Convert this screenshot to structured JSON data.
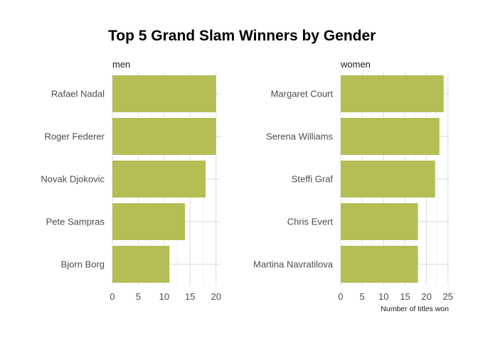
{
  "chart_data": {
    "type": "bar",
    "orientation": "horizontal",
    "title": "Top 5 Grand Slam Winners by Gender",
    "xlabel": "Number of titles won",
    "bar_color": "#b5bd55",
    "grid": true,
    "panels": [
      {
        "label": "men",
        "categories": [
          "Rafael Nadal",
          "Roger Federer",
          "Novak Djokovic",
          "Pete Sampras",
          "Bjorn Borg"
        ],
        "values": [
          20,
          20,
          18,
          14,
          11
        ],
        "xlim": [
          0,
          21
        ],
        "xticks": [
          0,
          5,
          10,
          15,
          20
        ]
      },
      {
        "label": "women",
        "categories": [
          "Margaret Court",
          "Serena Williams",
          "Steffi Graf",
          "Chris Evert",
          "Martina Navratilova"
        ],
        "values": [
          24,
          23,
          22,
          18,
          18
        ],
        "xlim": [
          0,
          25.2
        ],
        "xticks": [
          0,
          5,
          10,
          15,
          20,
          25
        ]
      }
    ]
  }
}
